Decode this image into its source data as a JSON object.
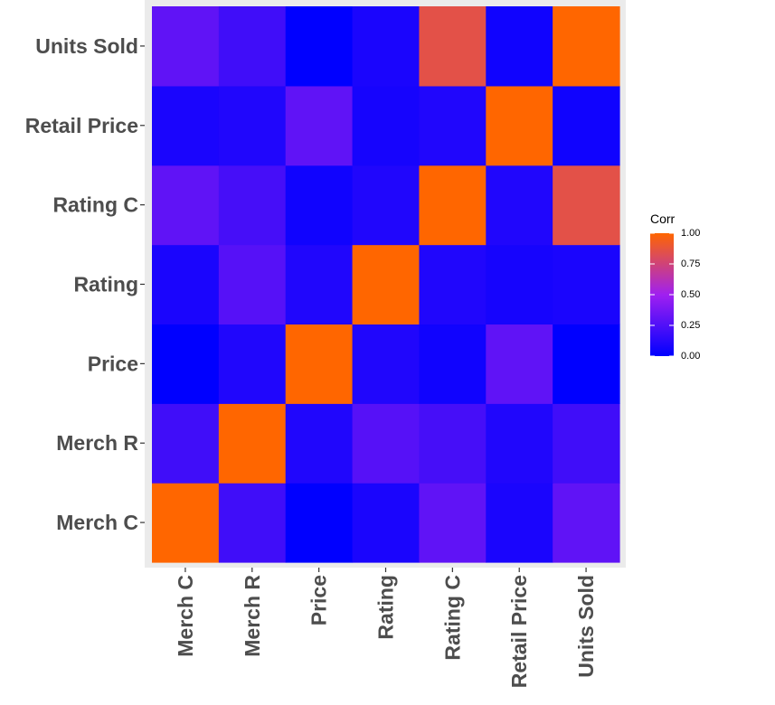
{
  "chart_data": {
    "type": "heatmap",
    "title": "",
    "xlabel": "",
    "ylabel": "",
    "x_categories": [
      "Merch C",
      "Merch R",
      "Price",
      "Rating",
      "Rating C",
      "Retail Price",
      "Units Sold"
    ],
    "y_categories": [
      "Merch C",
      "Merch R",
      "Price",
      "Rating",
      "Rating C",
      "Retail Price",
      "Units Sold"
    ],
    "values": [
      [
        1.0,
        0.2,
        0.0,
        0.08,
        0.3,
        0.08,
        0.3
      ],
      [
        0.2,
        1.0,
        0.1,
        0.27,
        0.22,
        0.1,
        0.2
      ],
      [
        0.0,
        0.1,
        1.0,
        0.1,
        0.05,
        0.3,
        0.0
      ],
      [
        0.08,
        0.27,
        0.1,
        1.0,
        0.1,
        0.07,
        0.08
      ],
      [
        0.3,
        0.22,
        0.05,
        0.1,
        1.0,
        0.1,
        0.85
      ],
      [
        0.08,
        0.1,
        0.3,
        0.07,
        0.1,
        1.0,
        0.05
      ],
      [
        0.3,
        0.2,
        0.0,
        0.08,
        0.85,
        0.05,
        1.0
      ]
    ],
    "value_range": [
      0,
      1
    ],
    "colorscale": {
      "low": "#0000ff",
      "mid": "#a020f0",
      "high": "#ff6600"
    },
    "legend": {
      "title": "Corr",
      "ticks": [
        "1.00",
        "0.75",
        "0.50",
        "0.25",
        "0.00"
      ],
      "tick_values": [
        1.0,
        0.75,
        0.5,
        0.25,
        0.0
      ],
      "placement": "right"
    },
    "panel_background": "#ebebeb",
    "grid": true
  }
}
